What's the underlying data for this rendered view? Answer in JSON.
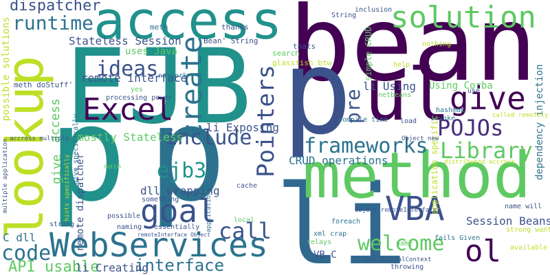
{
  "words": [
    {
      "id": "ejb",
      "text": "EJB",
      "color": "#21918c"
    },
    {
      "id": "bean",
      "text": "bean",
      "color": "#440154"
    },
    {
      "id": "p1",
      "text": "p",
      "color": "#3b528b"
    },
    {
      "id": "p2",
      "text": "p",
      "color": "#21918c"
    },
    {
      "id": "p3",
      "text": "p",
      "color": "#2c728e"
    },
    {
      "id": "li",
      "text": "li",
      "color": "#31688e"
    },
    {
      "id": "method",
      "text": "method",
      "color": "#5ec962"
    },
    {
      "id": "access",
      "text": "access",
      "color": "#21918c"
    },
    {
      "id": "lookup",
      "text": "lookup",
      "color": "#bddf26"
    },
    {
      "id": "ul",
      "text": "ul",
      "color": "#440154"
    },
    {
      "id": "solution",
      "text": "solution",
      "color": "#5ec962"
    },
    {
      "id": "webservices",
      "text": "WebServices",
      "color": "#2c728e"
    },
    {
      "id": "excel",
      "text": "Excel",
      "color": "#440154"
    },
    {
      "id": "give1",
      "text": "give",
      "color": "#440154"
    },
    {
      "id": "create",
      "text": "create",
      "color": "#2c728e"
    },
    {
      "id": "vba",
      "text": "VBA",
      "color": "#3b528b"
    },
    {
      "id": "goal",
      "text": "goal",
      "color": "#3b528b"
    },
    {
      "id": "ol",
      "text": "ol",
      "color": "#440154"
    },
    {
      "id": "dispatcher",
      "text": "dispatcher",
      "color": "#3b528b"
    },
    {
      "id": "runtime",
      "text": "runtime",
      "color": "#2c728e"
    },
    {
      "id": "ideas",
      "text": "ideas",
      "color": "#3b528b"
    },
    {
      "id": "pojos",
      "text": "POJOs",
      "color": "#472d7b"
    },
    {
      "id": "pointers",
      "text": "Pointers",
      "color": "#3b528b"
    },
    {
      "id": "library",
      "text": "Library",
      "color": "#5ec962"
    },
    {
      "id": "frameworks",
      "text": "frameworks",
      "color": "#2c728e"
    },
    {
      "id": "include",
      "text": "include",
      "color": "#3b528b"
    },
    {
      "id": "pre",
      "text": "pre",
      "color": "#3b528b"
    },
    {
      "id": "call",
      "text": "call",
      "color": "#3b528b"
    },
    {
      "id": "welcome",
      "text": "welcome",
      "color": "#5ec962"
    },
    {
      "id": "ejb3",
      "text": "ejb3",
      "color": "#21918c"
    },
    {
      "id": "code",
      "text": "code",
      "color": "#2c728e"
    },
    {
      "id": "interface",
      "text": "interface",
      "color": "#2c728e"
    },
    {
      "id": "api_usable",
      "text": "API usable",
      "color": "#5ec962"
    },
    {
      "id": "session_beans",
      "text": "Session Beans",
      "color": "#3b528b"
    },
    {
      "id": "stateless_session",
      "text": "Stateless Session",
      "color": "#3b528b"
    },
    {
      "id": "remote_interface",
      "text": "remote interface",
      "color": "#3b528b"
    },
    {
      "id": "uses_java",
      "text": "uses Java",
      "color": "#5ec962"
    },
    {
      "id": "crud_operations",
      "text": "CRUD operations",
      "color": "#2c728e"
    },
    {
      "id": "mostly_stateless",
      "text": "mostly Stateless",
      "color": "#5ec962"
    },
    {
      "id": "li_exposing",
      "text": "li Exposing",
      "color": "#3b528b"
    },
    {
      "id": "dll_wrapping",
      "text": "dll wrapping",
      "color": "#3b528b"
    },
    {
      "id": "li_creating",
      "text": "li Creating",
      "color": "#3b528b"
    },
    {
      "id": "c_dll",
      "text": "C dll",
      "color": "#2c728e"
    },
    {
      "id": "vb_c",
      "text": "VB C",
      "color": "#3b528b"
    },
    {
      "id": "li_using",
      "text": "li Using",
      "color": "#3b528b"
    },
    {
      "id": "using_corba",
      "text": "Using Corba",
      "color": "#5ec962"
    },
    {
      "id": "give2",
      "text": "give",
      "color": "#5ec962"
    },
    {
      "id": "access2",
      "text": "access",
      "color": "#5ec962"
    },
    {
      "id": "possible_solutions",
      "text": "possible solutions",
      "color": "#bddf26"
    },
    {
      "id": "dependency_injection",
      "text": "dependency injection",
      "color": "#2c728e"
    },
    {
      "id": "remote_dispatcher",
      "text": "remote dispatcher",
      "color": "#3b528b"
    },
    {
      "id": "simple_crud",
      "text": "simple CRUD",
      "color": "#5ec962"
    },
    {
      "id": "application_specific",
      "text": "application specific",
      "color": "#bddf26"
    },
    {
      "id": "thanks",
      "text": "thanks",
      "color": "#3b528b"
    },
    {
      "id": "meth",
      "text": "meth",
      "color": "#2c728e"
    },
    {
      "id": "meth_dostuff",
      "text": "meth doStuff'",
      "color": "#3b528b"
    },
    {
      "id": "bean_string",
      "text": "Bean' String",
      "color": "#3b528b"
    },
    {
      "id": "network",
      "text": "network",
      "color": "#2c728e"
    },
    {
      "id": "thats",
      "text": "thats",
      "color": "#3b528b"
    },
    {
      "id": "search",
      "text": "search",
      "color": "#5ec962"
    },
    {
      "id": "glassfish_btw",
      "text": "glassfish btw",
      "color": "#bddf26"
    },
    {
      "id": "processing_power",
      "text": "processing power",
      "color": "#3b528b"
    },
    {
      "id": "yes",
      "text": "yes",
      "color": "#5ec962"
    },
    {
      "id": "string",
      "text": "String",
      "color": "#3b528b"
    },
    {
      "id": "inclusion",
      "text": "inclusion",
      "color": "#3b528b"
    },
    {
      "id": "nothing",
      "text": "nothing",
      "color": "#bddf26"
    },
    {
      "id": "help",
      "text": "help",
      "color": "#bddf26"
    },
    {
      "id": "netbeans",
      "text": "netbeans",
      "color": "#5ec962"
    },
    {
      "id": "use",
      "text": "use",
      "color": "#3b528b"
    },
    {
      "id": "hashmap",
      "text": "hashmap",
      "color": "#2c728e"
    },
    {
      "id": "invoke",
      "text": "invoke",
      "color": "#2c728e"
    },
    {
      "id": "called_remotely",
      "text": "called remotely",
      "color": "#bddf26"
    },
    {
      "id": "load",
      "text": "load",
      "color": "#3b528b"
    },
    {
      "id": "compile_time",
      "text": "compile time",
      "color": "#2c728e"
    },
    {
      "id": "object_new",
      "text": "Object new",
      "color": "#3b528b"
    },
    {
      "id": "distributed_accross",
      "text": "distributed accross",
      "color": "#bddf26"
    },
    {
      "id": "accross_multiple",
      "text": "accross multiple",
      "color": "#3b528b"
    },
    {
      "id": "main",
      "text": "main",
      "color": "#5ec962"
    },
    {
      "id": "give_specifically",
      "text": "give specifically",
      "color": "#2c728e"
    },
    {
      "id": "multiple_application",
      "text": "multiple application",
      "color": "#3b528b"
    },
    {
      "id": "hints_specifically",
      "text": "hints specifically",
      "color": "#bddf26"
    },
    {
      "id": "application_servers",
      "text": "application servers",
      "color": "#2c728e"
    },
    {
      "id": "something",
      "text": "something",
      "color": "#3b528b"
    },
    {
      "id": "naming",
      "text": "naming",
      "color": "#3b528b"
    },
    {
      "id": "possible",
      "text": "possible",
      "color": "#3b528b"
    },
    {
      "id": "essentially",
      "text": "essentially",
      "color": "#3b528b"
    },
    {
      "id": "cache",
      "text": "cache",
      "color": "#3b528b"
    },
    {
      "id": "local",
      "text": "local",
      "color": "#5ec962"
    },
    {
      "id": "strong",
      "text": "strong",
      "color": "#3b528b"
    },
    {
      "id": "remoteinterface_object",
      "text": "remoteInterface Object",
      "color": "#3b528b"
    },
    {
      "id": "xml_crap",
      "text": "xml crap",
      "color": "#2c728e"
    },
    {
      "id": "relays",
      "text": "relays",
      "color": "#5ec962"
    },
    {
      "id": "foreach",
      "text": "foreach",
      "color": "#2c728e"
    },
    {
      "id": "object_remoteinterface",
      "text": "Object remoteInterface",
      "color": "#3b528b"
    },
    {
      "id": "name",
      "text": "name",
      "color": "#5ec962"
    },
    {
      "id": "name_will",
      "text": "name will",
      "color": "#3b528b"
    },
    {
      "id": "strong_want",
      "text": "strong want",
      "color": "#bddf26"
    },
    {
      "id": "fails_given",
      "text": "fails Given",
      "color": "#2c728e"
    },
    {
      "id": "available",
      "text": "available",
      "color": "#bddf26"
    },
    {
      "id": "new_initialcontext",
      "text": "new InitialContext",
      "color": "#3b528b"
    },
    {
      "id": "throwing",
      "text": "throwing",
      "color": "#3b528b"
    }
  ]
}
